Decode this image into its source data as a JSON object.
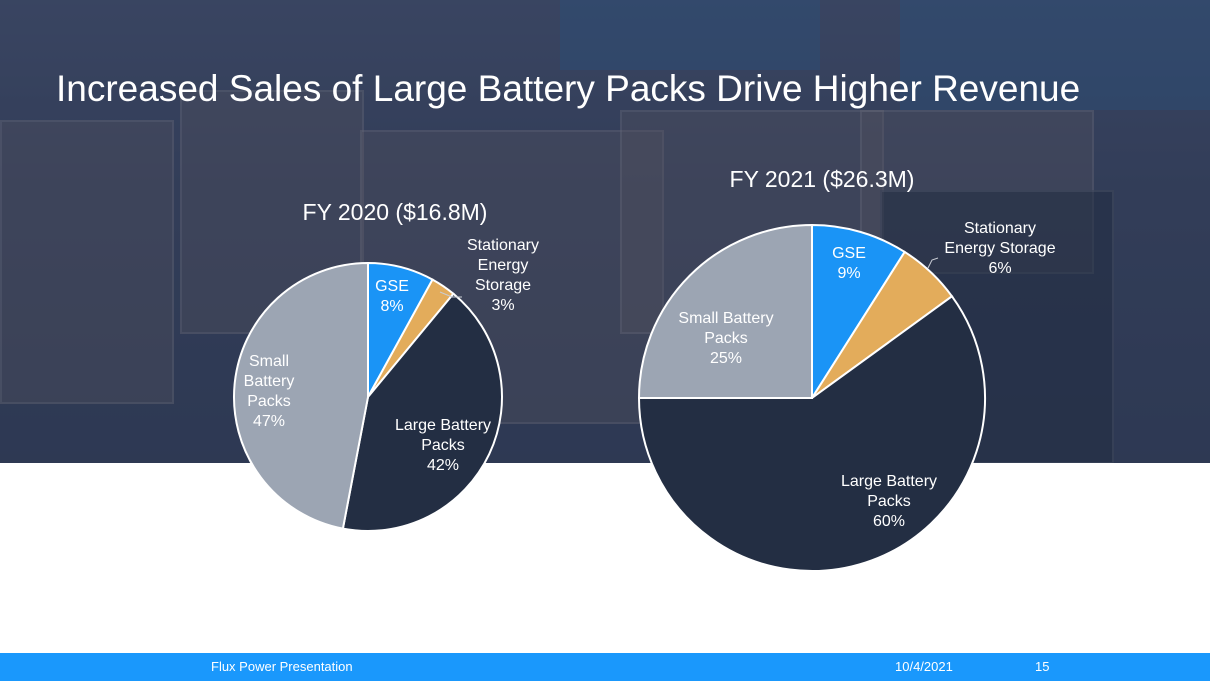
{
  "slide": {
    "title": "Increased Sales of Large Battery Packs Drive Higher Revenue",
    "footer": {
      "presentation_name": "Flux Power Presentation",
      "date": "10/4/2021",
      "page_number": "15"
    },
    "colors": {
      "footer_bar": "#1a98fc",
      "title_text": "#ffffff"
    }
  },
  "chart_data": [
    {
      "type": "pie",
      "title": "FY 2020 ($16.8M)",
      "start_angle": "12 o'clock, clockwise",
      "slices": [
        {
          "label": [
            "GSE"
          ],
          "value": 8,
          "value_label": "8%",
          "color": "#1a94f6"
        },
        {
          "label": [
            "Stationary",
            "Energy",
            "Storage"
          ],
          "value": 3,
          "value_label": "3%",
          "color": "#e3ac5b"
        },
        {
          "label": [
            "Large Battery",
            "Packs"
          ],
          "value": 42,
          "value_label": "42%",
          "color": "#232e43"
        },
        {
          "label": [
            "Small",
            "Battery",
            "Packs"
          ],
          "value": 47,
          "value_label": "47%",
          "color": "#9ca5b3"
        }
      ]
    },
    {
      "type": "pie",
      "title": "FY 2021 ($26.3M)",
      "start_angle": "12 o'clock, clockwise",
      "slices": [
        {
          "label": [
            "GSE"
          ],
          "value": 9,
          "value_label": "9%",
          "color": "#1a94f6"
        },
        {
          "label": [
            "Stationary",
            "Energy Storage"
          ],
          "value": 6,
          "value_label": "6%",
          "color": "#e3ac5b"
        },
        {
          "label": [
            "Large Battery",
            "Packs"
          ],
          "value": 60,
          "value_label": "60%",
          "color": "#232e43"
        },
        {
          "label": [
            "Small Battery",
            "Packs"
          ],
          "value": 25,
          "value_label": "25%",
          "color": "#9ca5b3"
        }
      ]
    }
  ]
}
